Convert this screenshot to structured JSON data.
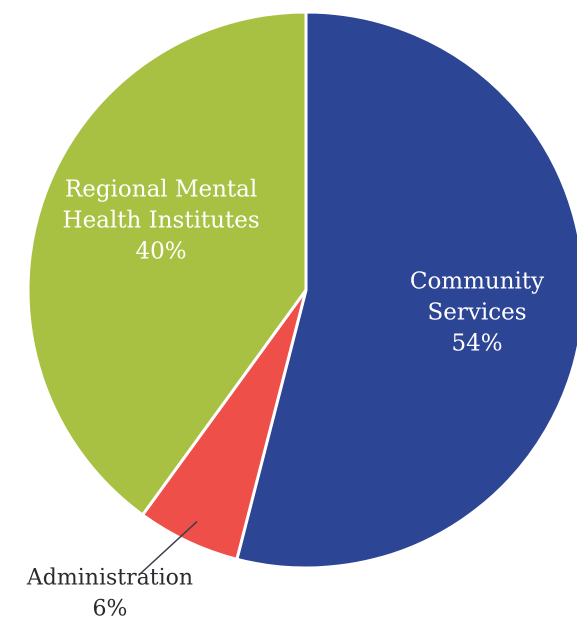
{
  "chart_data": {
    "type": "pie",
    "slices": [
      {
        "name": "Community Services",
        "label_lines": [
          "Community",
          "Services"
        ],
        "value": 54,
        "value_label": "54%",
        "color": "#2d4595"
      },
      {
        "name": "Administration",
        "label_lines": [
          "Administration"
        ],
        "value": 6,
        "value_label": "6%",
        "color": "#ee4f49"
      },
      {
        "name": "Regional Mental Health Institutes",
        "label_lines": [
          "Regional Mental",
          "Health Institutes"
        ],
        "value": 40,
        "value_label": "40%",
        "color": "#a8c142"
      }
    ],
    "start_angle_deg": 0,
    "direction": "clockwise",
    "separator_color": "#ffffff",
    "leader_line_color": "#3c3c4a"
  }
}
